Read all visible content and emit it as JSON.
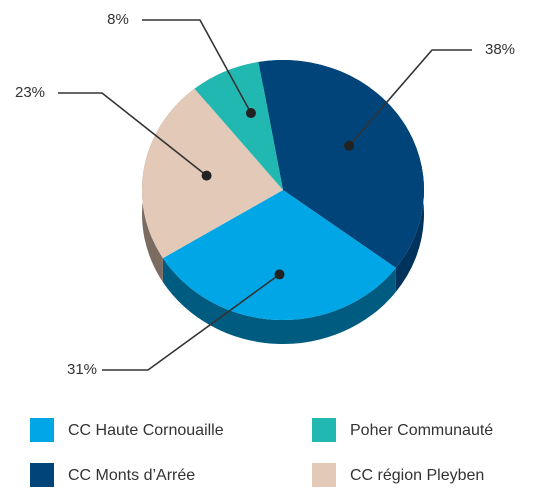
{
  "chart_data": {
    "type": "pie",
    "categories": [
      "CC Monts d’Arrée",
      "CC Haute Cornouaille",
      "CC région Pleyben",
      "Poher Communauté"
    ],
    "values": [
      38,
      31,
      23,
      8
    ],
    "value_labels": [
      "38%",
      "31%",
      "23%",
      "8%"
    ],
    "colors": [
      "#00447a",
      "#00a6e6",
      "#e2c9b8",
      "#22b8b2"
    ],
    "side_colors": [
      "#00335c",
      "#005b80",
      "#7b6b61",
      "#127a76"
    ]
  }
}
